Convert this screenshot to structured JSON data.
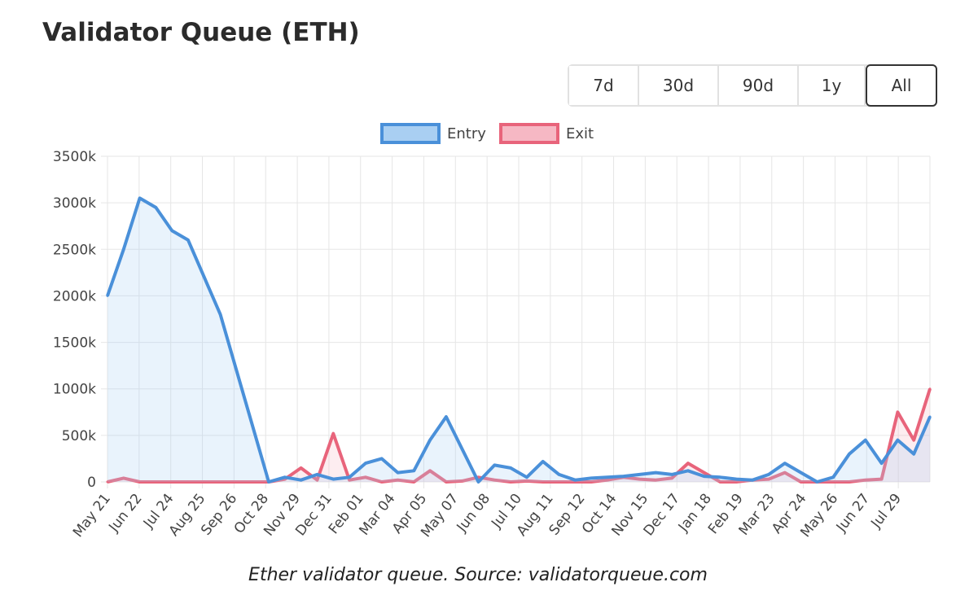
{
  "title": "Validator Queue (ETH)",
  "range_buttons": [
    {
      "label": "7d",
      "active": false
    },
    {
      "label": "30d",
      "active": false
    },
    {
      "label": "90d",
      "active": false
    },
    {
      "label": "1y",
      "active": false
    },
    {
      "label": "All",
      "active": true
    }
  ],
  "caption": "Ether validator queue. Source: validatorqueue.com",
  "colors": {
    "entry_line": "#4a90d9",
    "entry_fill": "#a9cff2",
    "exit_line": "#e8647b",
    "exit_fill": "#f6b8c4",
    "grid": "#e6e6e6",
    "text": "#444444"
  },
  "chart_data": {
    "type": "line",
    "legend": [
      "Entry",
      "Exit"
    ],
    "legend_position": "top-center",
    "grid": true,
    "ylim": [
      0,
      3500
    ],
    "y_ticks": [
      "3500k",
      "3000k",
      "2500k",
      "2000k",
      "1500k",
      "1000k",
      "500k",
      "0"
    ],
    "x_tick_labels": [
      "May 21",
      "Jun 22",
      "Jul 24",
      "Aug 25",
      "Sep 26",
      "Oct 28",
      "Nov 29",
      "Dec 31",
      "Feb 01",
      "Mar 04",
      "Apr 05",
      "May 07",
      "Jun 08",
      "Jul 10",
      "Aug 11",
      "Sep 12",
      "Oct 14",
      "Nov 15",
      "Dec 17",
      "Jan 18",
      "Feb 19",
      "Mar 23",
      "Apr 24",
      "May 26",
      "Jun 27",
      "Jul 29"
    ],
    "x": [
      "May 21",
      "Jun 06",
      "Jun 22",
      "Jul 08",
      "Jul 24",
      "Aug 09",
      "Aug 25",
      "Sep 10",
      "Sep 26",
      "Oct 12",
      "Oct 28",
      "Nov 13",
      "Nov 29",
      "Dec 15",
      "Dec 31",
      "Jan 16",
      "Feb 01",
      "Feb 17",
      "Mar 04",
      "Mar 20",
      "Apr 05",
      "Apr 21",
      "May 07",
      "May 23",
      "Jun 08",
      "Jun 24",
      "Jul 10",
      "Jul 26",
      "Aug 11",
      "Aug 27",
      "Sep 12",
      "Sep 28",
      "Oct 14",
      "Oct 30",
      "Nov 15",
      "Dec 01",
      "Dec 17",
      "Jan 02",
      "Jan 18",
      "Feb 03",
      "Feb 19",
      "Mar 07",
      "Mar 23",
      "Apr 08",
      "Apr 24",
      "May 10",
      "May 26",
      "Jun 11",
      "Jun 27",
      "Jul 13",
      "Jul 29",
      "Aug 14"
    ],
    "series": [
      {
        "name": "Entry",
        "values": [
          2000,
          2500,
          3050,
          2950,
          2700,
          2600,
          2200,
          1800,
          1200,
          600,
          0,
          50,
          20,
          80,
          30,
          50,
          200,
          250,
          100,
          120,
          450,
          700,
          350,
          0,
          180,
          150,
          50,
          220,
          80,
          20,
          40,
          50,
          60,
          80,
          100,
          80,
          120,
          60,
          50,
          30,
          20,
          80,
          200,
          100,
          0,
          50,
          300,
          450,
          200,
          450,
          300,
          700
        ]
      },
      {
        "name": "Exit",
        "values": [
          0,
          40,
          0,
          0,
          0,
          0,
          0,
          0,
          0,
          0,
          0,
          30,
          150,
          20,
          520,
          20,
          50,
          0,
          20,
          0,
          120,
          0,
          10,
          50,
          20,
          0,
          10,
          0,
          0,
          0,
          0,
          20,
          50,
          30,
          20,
          40,
          200,
          100,
          0,
          0,
          20,
          30,
          100,
          0,
          0,
          0,
          0,
          20,
          30,
          750,
          450,
          1000
        ]
      }
    ]
  }
}
